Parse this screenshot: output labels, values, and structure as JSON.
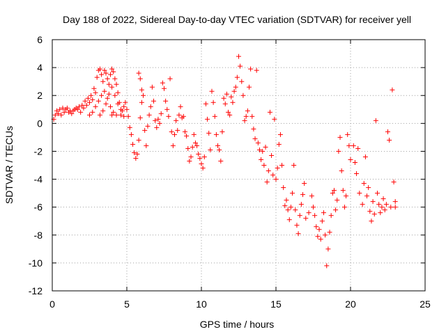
{
  "chart_data": {
    "type": "scatter",
    "title": "Day 188 of 2022, Sidereal Day-to-day VTEC variation (SDTVAR) for receiver yell",
    "xlabel": "GPS time / hours",
    "ylabel": "SDTVAR / TECUs",
    "xlim": [
      0,
      25
    ],
    "ylim": [
      -12,
      6
    ],
    "x_ticks": [
      0,
      5,
      10,
      15,
      20,
      25
    ],
    "y_ticks": [
      -12,
      -10,
      -8,
      -6,
      -4,
      -2,
      0,
      2,
      4,
      6
    ],
    "grid": true,
    "marker": "plus",
    "color": "#ff0000",
    "series": [
      {
        "name": "SDTVAR",
        "points": [
          [
            0.1,
            0.3
          ],
          [
            0.2,
            0.6
          ],
          [
            0.3,
            0.9
          ],
          [
            0.4,
            0.7
          ],
          [
            0.5,
            1.0
          ],
          [
            0.6,
            0.6
          ],
          [
            0.7,
            1.1
          ],
          [
            0.8,
            0.8
          ],
          [
            0.9,
            1.0
          ],
          [
            1.0,
            1.1
          ],
          [
            1.1,
            0.8
          ],
          [
            1.2,
            0.9
          ],
          [
            1.3,
            0.7
          ],
          [
            1.4,
            0.9
          ],
          [
            1.5,
            1.0
          ],
          [
            1.6,
            1.1
          ],
          [
            1.7,
            1.0
          ],
          [
            1.8,
            1.2
          ],
          [
            1.9,
            0.8
          ],
          [
            2.0,
            1.3
          ],
          [
            2.1,
            1.1
          ],
          [
            2.2,
            1.6
          ],
          [
            2.3,
            1.3
          ],
          [
            2.4,
            1.8
          ],
          [
            2.5,
            1.5
          ],
          [
            2.6,
            2.0
          ],
          [
            2.7,
            1.7
          ],
          [
            2.8,
            2.5
          ],
          [
            2.9,
            2.2
          ],
          [
            3.0,
            3.3
          ],
          [
            3.1,
            3.8
          ],
          [
            3.2,
            3.9
          ],
          [
            3.3,
            3.5
          ],
          [
            3.4,
            3.0
          ],
          [
            3.5,
            3.8
          ],
          [
            3.6,
            3.6
          ],
          [
            3.7,
            3.2
          ],
          [
            3.8,
            2.8
          ],
          [
            3.9,
            3.5
          ],
          [
            4.0,
            3.9
          ],
          [
            4.1,
            3.7
          ],
          [
            4.2,
            3.2
          ],
          [
            4.3,
            2.8
          ],
          [
            4.4,
            2.2
          ],
          [
            4.5,
            1.5
          ],
          [
            4.6,
            1.0
          ],
          [
            4.7,
            0.9
          ],
          [
            4.8,
            1.2
          ],
          [
            4.9,
            1.5
          ],
          [
            5.0,
            1.0
          ],
          [
            2.5,
            0.6
          ],
          [
            2.7,
            0.8
          ],
          [
            2.9,
            1.2
          ],
          [
            3.1,
            1.6
          ],
          [
            3.3,
            2.0
          ],
          [
            3.5,
            2.3
          ],
          [
            3.7,
            1.8
          ],
          [
            3.9,
            1.2
          ],
          [
            4.1,
            0.8
          ],
          [
            4.3,
            0.6
          ],
          [
            3.2,
            0.6
          ],
          [
            3.4,
            0.9
          ],
          [
            3.6,
            1.4
          ],
          [
            3.8,
            2.1
          ],
          [
            4.0,
            2.6
          ],
          [
            4.2,
            2.0
          ],
          [
            4.4,
            1.4
          ],
          [
            4.6,
            0.6
          ],
          [
            4.8,
            0.5
          ],
          [
            4.0,
            0.6
          ],
          [
            5.1,
            0.5
          ],
          [
            5.2,
            -0.3
          ],
          [
            5.3,
            -0.8
          ],
          [
            5.4,
            -1.5
          ],
          [
            5.5,
            -2.1
          ],
          [
            5.6,
            -2.5
          ],
          [
            5.7,
            -2.2
          ],
          [
            5.8,
            -1.2
          ],
          [
            5.9,
            0.4
          ],
          [
            6.0,
            1.5
          ],
          [
            5.8,
            3.6
          ],
          [
            5.9,
            3.2
          ],
          [
            6.0,
            2.4
          ],
          [
            6.1,
            2.0
          ],
          [
            6.2,
            -0.5
          ],
          [
            6.3,
            -1.6
          ],
          [
            6.4,
            -0.2
          ],
          [
            6.5,
            0.6
          ],
          [
            6.6,
            1.2
          ],
          [
            6.7,
            2.6
          ],
          [
            6.8,
            1.6
          ],
          [
            6.9,
            0.2
          ],
          [
            7.0,
            -0.3
          ],
          [
            7.1,
            0.3
          ],
          [
            7.2,
            0.0
          ],
          [
            7.3,
            0.7
          ],
          [
            7.4,
            2.9
          ],
          [
            7.5,
            2.5
          ],
          [
            7.6,
            1.6
          ],
          [
            7.7,
            1.0
          ],
          [
            7.8,
            0.5
          ],
          [
            7.9,
            3.2
          ],
          [
            8.0,
            -0.6
          ],
          [
            8.1,
            -1.6
          ],
          [
            8.2,
            -0.8
          ],
          [
            8.3,
            0.2
          ],
          [
            8.4,
            -0.5
          ],
          [
            8.5,
            0.6
          ],
          [
            8.6,
            1.2
          ],
          [
            8.7,
            0.4
          ],
          [
            8.8,
            0.5
          ],
          [
            8.9,
            -0.6
          ],
          [
            9.0,
            -0.9
          ],
          [
            9.1,
            -1.8
          ],
          [
            9.2,
            -2.7
          ],
          [
            9.3,
            -2.4
          ],
          [
            9.4,
            -1.7
          ],
          [
            9.5,
            -0.8
          ],
          [
            9.6,
            -1.4
          ],
          [
            9.7,
            -1.6
          ],
          [
            9.8,
            -2.2
          ],
          [
            9.9,
            -2.5
          ],
          [
            10.0,
            -2.9
          ],
          [
            10.1,
            -3.2
          ],
          [
            10.2,
            -2.4
          ],
          [
            10.3,
            1.4
          ],
          [
            10.4,
            0.3
          ],
          [
            10.5,
            -0.7
          ],
          [
            10.6,
            -1.9
          ],
          [
            10.7,
            2.3
          ],
          [
            10.8,
            1.5
          ],
          [
            10.9,
            0.5
          ],
          [
            11.0,
            -0.8
          ],
          [
            11.1,
            -1.6
          ],
          [
            11.2,
            -1.9
          ],
          [
            11.3,
            -2.7
          ],
          [
            11.4,
            -0.6
          ],
          [
            11.5,
            1.8
          ],
          [
            11.6,
            1.4
          ],
          [
            11.7,
            2.1
          ],
          [
            11.8,
            0.8
          ],
          [
            11.9,
            0.6
          ],
          [
            12.0,
            1.9
          ],
          [
            12.1,
            1.5
          ],
          [
            12.2,
            2.3
          ],
          [
            12.3,
            2.6
          ],
          [
            12.4,
            3.3
          ],
          [
            12.5,
            4.8
          ],
          [
            12.6,
            4.1
          ],
          [
            12.7,
            3.0
          ],
          [
            12.8,
            2.0
          ],
          [
            12.9,
            0.2
          ],
          [
            13.0,
            0.5
          ],
          [
            13.1,
            0.9
          ],
          [
            13.2,
            2.6
          ],
          [
            13.3,
            3.9
          ],
          [
            13.4,
            0.5
          ],
          [
            13.5,
            -0.4
          ],
          [
            13.6,
            -1.1
          ],
          [
            13.7,
            3.8
          ],
          [
            13.8,
            -1.4
          ],
          [
            13.9,
            -1.9
          ],
          [
            14.0,
            -2.6
          ],
          [
            14.1,
            -2.0
          ],
          [
            14.2,
            -3.0
          ],
          [
            14.3,
            -1.7
          ],
          [
            14.4,
            -4.2
          ],
          [
            14.5,
            -3.4
          ],
          [
            14.6,
            0.8
          ],
          [
            14.7,
            -2.3
          ],
          [
            14.8,
            -3.7
          ],
          [
            14.9,
            0.3
          ],
          [
            15.0,
            -4.0
          ],
          [
            15.1,
            -3.2
          ],
          [
            15.2,
            -1.5
          ],
          [
            15.3,
            -0.8
          ],
          [
            15.4,
            -3.0
          ],
          [
            15.5,
            -4.6
          ],
          [
            15.6,
            -5.9
          ],
          [
            15.7,
            -5.5
          ],
          [
            15.8,
            -6.2
          ],
          [
            15.9,
            -6.9
          ],
          [
            16.0,
            -6.0
          ],
          [
            16.1,
            -5.0
          ],
          [
            16.2,
            -3.0
          ],
          [
            16.3,
            -6.2
          ],
          [
            16.4,
            -7.3
          ],
          [
            16.5,
            -7.9
          ],
          [
            16.6,
            -6.6
          ],
          [
            16.7,
            -5.8
          ],
          [
            16.8,
            -5.1
          ],
          [
            16.9,
            -4.3
          ],
          [
            17.0,
            -6.8
          ],
          [
            17.2,
            -6.4
          ],
          [
            17.4,
            -5.2
          ],
          [
            17.5,
            -6.0
          ],
          [
            17.6,
            -6.6
          ],
          [
            17.7,
            -7.4
          ],
          [
            17.8,
            -8.1
          ],
          [
            17.9,
            -7.6
          ],
          [
            18.0,
            -8.3
          ],
          [
            18.1,
            -7.0
          ],
          [
            18.2,
            -6.4
          ],
          [
            18.3,
            -8.0
          ],
          [
            18.4,
            -10.2
          ],
          [
            18.5,
            -9.0
          ],
          [
            18.6,
            -7.8
          ],
          [
            18.7,
            -6.6
          ],
          [
            18.8,
            -5.0
          ],
          [
            18.9,
            -4.8
          ],
          [
            19.0,
            -6.2
          ],
          [
            19.1,
            -5.5
          ],
          [
            19.2,
            -2.0
          ],
          [
            19.3,
            -1.0
          ],
          [
            19.4,
            -3.4
          ],
          [
            19.5,
            -4.8
          ],
          [
            19.6,
            -6.0
          ],
          [
            19.7,
            -5.2
          ],
          [
            19.8,
            -0.8
          ],
          [
            19.9,
            -1.6
          ],
          [
            20.0,
            -2.6
          ],
          [
            20.2,
            -1.6
          ],
          [
            20.3,
            -2.8
          ],
          [
            20.4,
            -3.6
          ],
          [
            20.5,
            -1.8
          ],
          [
            20.6,
            -5.0
          ],
          [
            20.8,
            -5.8
          ],
          [
            20.9,
            -4.3
          ],
          [
            21.0,
            -2.4
          ],
          [
            21.1,
            -5.2
          ],
          [
            21.2,
            -4.6
          ],
          [
            21.3,
            -6.3
          ],
          [
            21.4,
            -7.0
          ],
          [
            21.5,
            -5.6
          ],
          [
            21.6,
            -6.5
          ],
          [
            21.7,
            0.2
          ],
          [
            21.8,
            -5.0
          ],
          [
            21.9,
            -5.8
          ],
          [
            22.0,
            -6.4
          ],
          [
            22.1,
            -6.0
          ],
          [
            22.2,
            -5.4
          ],
          [
            22.3,
            -6.2
          ],
          [
            22.4,
            -5.8
          ],
          [
            22.5,
            -0.6
          ],
          [
            22.6,
            -1.2
          ],
          [
            22.7,
            -6.0
          ],
          [
            22.8,
            2.4
          ],
          [
            22.9,
            -4.2
          ],
          [
            23.0,
            -6.0
          ],
          [
            23.0,
            -5.6
          ]
        ]
      }
    ]
  }
}
